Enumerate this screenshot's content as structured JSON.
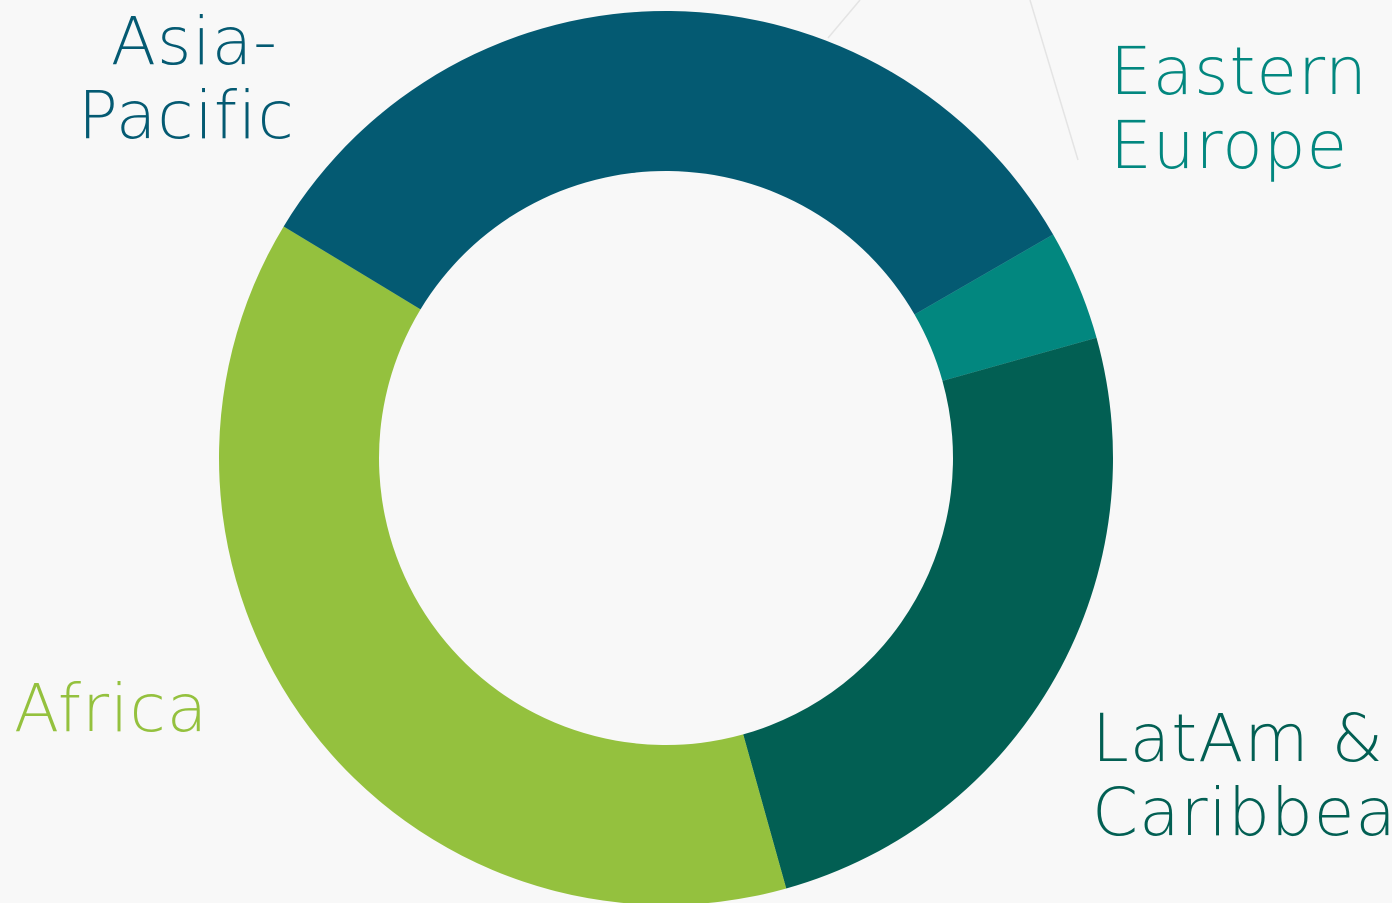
{
  "chart_data": {
    "type": "pie",
    "variant": "donut",
    "title": "",
    "start_angle_deg": 60,
    "slices": [
      {
        "label_lines": [
          "Eastern",
          "Europe"
        ],
        "value": 4,
        "color": "#02877f"
      },
      {
        "label_lines": [
          "LatAm &",
          "Caribbean"
        ],
        "value": 25,
        "color": "#025f53"
      },
      {
        "label_lines": [
          "Africa"
        ],
        "value": 38,
        "color": "#94c13e"
      },
      {
        "label_lines": [
          "Asia-",
          "Pacific"
        ],
        "value": 33,
        "color": "#045a72"
      }
    ]
  },
  "background_color": "#f8f8f8"
}
